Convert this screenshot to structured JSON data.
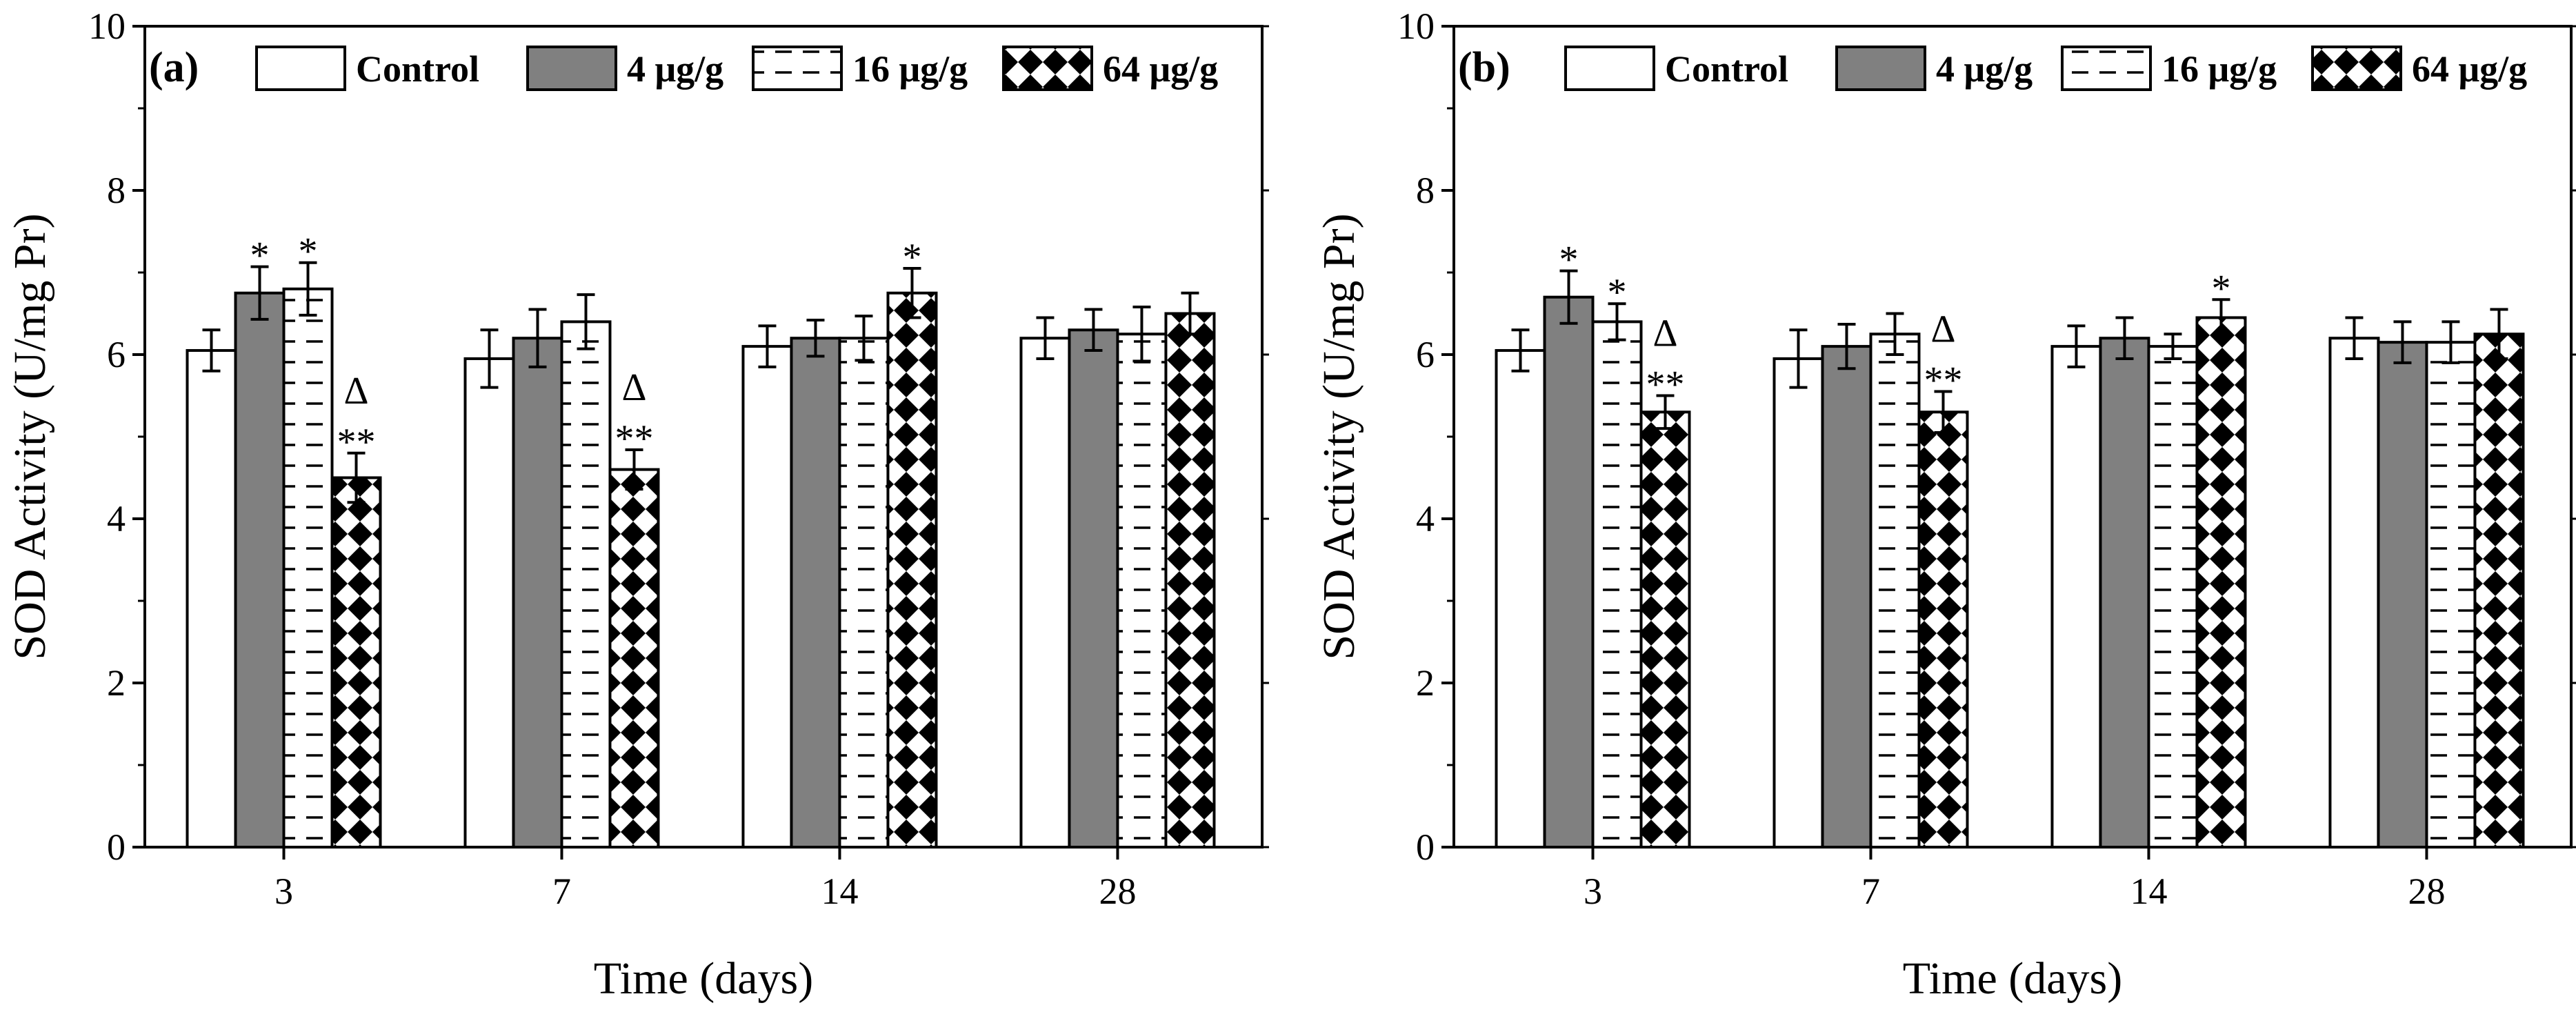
{
  "chart_data": [
    {
      "type": "bar",
      "panel_label": "(a)",
      "categories": [
        "3",
        "7",
        "14",
        "28"
      ],
      "xlabel": "Time (days)",
      "ylabel": "SOD Activity (U/mg Pr)",
      "ylim": [
        0,
        10
      ],
      "yticks": [
        "0",
        "2",
        "4",
        "6",
        "8",
        "10"
      ],
      "legend": {
        "position": "top",
        "entries": [
          "Control",
          "4 μg/g",
          "16 μg/g",
          "64 μg/g"
        ]
      },
      "series": [
        {
          "name": "Control",
          "values": [
            6.05,
            5.95,
            6.1,
            6.2
          ],
          "errors": [
            0.25,
            0.35,
            0.25,
            0.25
          ],
          "annotations": [
            "",
            "",
            "",
            ""
          ]
        },
        {
          "name": "4 μg/g",
          "values": [
            6.75,
            6.2,
            6.2,
            6.3
          ],
          "errors": [
            0.32,
            0.35,
            0.22,
            0.25
          ],
          "annotations": [
            "*",
            "",
            "",
            ""
          ]
        },
        {
          "name": "16 μg/g",
          "values": [
            6.8,
            6.4,
            6.2,
            6.25
          ],
          "errors": [
            0.32,
            0.33,
            0.27,
            0.33
          ],
          "annotations": [
            "*",
            "",
            "",
            ""
          ]
        },
        {
          "name": "64 μg/g",
          "values": [
            4.5,
            4.6,
            6.75,
            6.5
          ],
          "errors": [
            0.3,
            0.24,
            0.3,
            0.25
          ],
          "annotations": [
            "Δ\n**",
            "Δ\n**",
            "*",
            ""
          ]
        }
      ]
    },
    {
      "type": "bar",
      "panel_label": "(b)",
      "categories": [
        "3",
        "7",
        "14",
        "28"
      ],
      "xlabel": "Time (days)",
      "ylabel": "SOD Activity (U/mg Pr)",
      "ylim": [
        0,
        10
      ],
      "yticks": [
        "0",
        "2",
        "4",
        "6",
        "8",
        "10"
      ],
      "legend": {
        "position": "top",
        "entries": [
          "Control",
          "4 μg/g",
          "16 μg/g",
          "64 μg/g"
        ]
      },
      "series": [
        {
          "name": "Control",
          "values": [
            6.05,
            5.95,
            6.1,
            6.2
          ],
          "errors": [
            0.25,
            0.35,
            0.25,
            0.25
          ],
          "annotations": [
            "",
            "",
            "",
            ""
          ]
        },
        {
          "name": "4 μg/g",
          "values": [
            6.7,
            6.1,
            6.2,
            6.15
          ],
          "errors": [
            0.32,
            0.27,
            0.25,
            0.25
          ],
          "annotations": [
            "*",
            "",
            "",
            ""
          ]
        },
        {
          "name": "16 μg/g",
          "values": [
            6.4,
            6.25,
            6.1,
            6.15
          ],
          "errors": [
            0.22,
            0.25,
            0.15,
            0.25
          ],
          "annotations": [
            "*",
            "",
            "",
            ""
          ]
        },
        {
          "name": "64 μg/g",
          "values": [
            5.3,
            5.3,
            6.45,
            6.25
          ],
          "errors": [
            0.2,
            0.25,
            0.22,
            0.3
          ],
          "annotations": [
            "Δ\n**",
            "Δ\n**",
            "*",
            ""
          ]
        }
      ]
    }
  ]
}
